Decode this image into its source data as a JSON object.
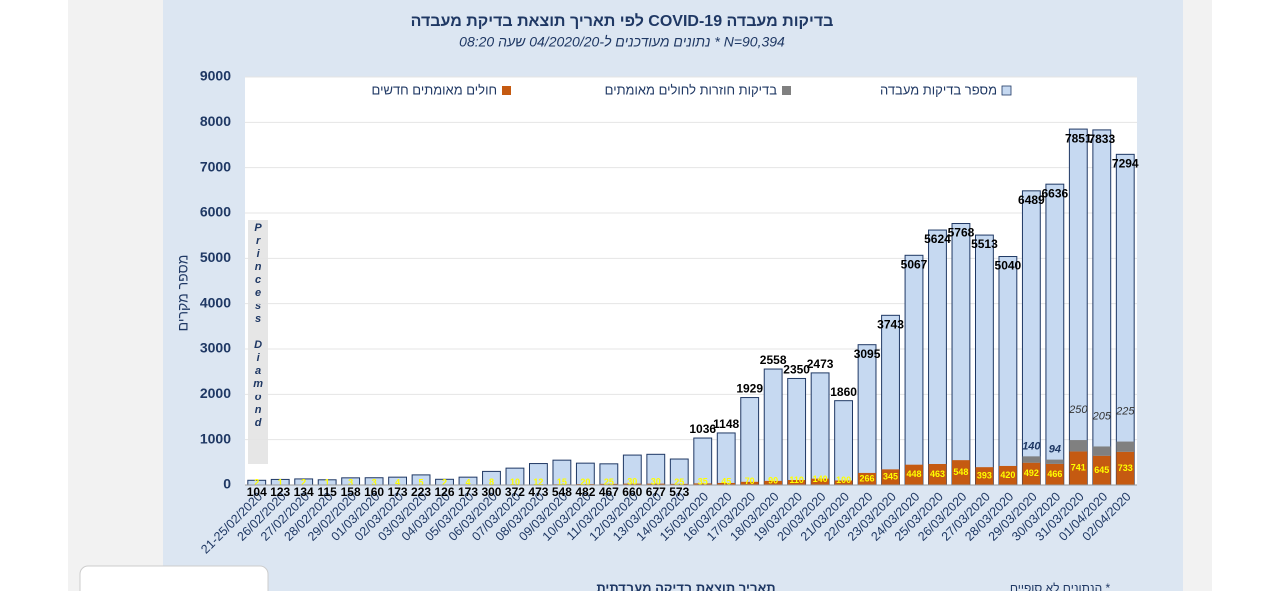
{
  "chart_data": {
    "type": "bar",
    "title": "בדיקות מעבדה COVID-19 לפי תאריך תוצאת בדיקת מעבדה",
    "subtitle": "N=90,394 *  נתונים מעודכנים ל-04/2020/20 שעה 08:20",
    "y_label": "מספר מקרים",
    "x_label": "תאריך תוצאת בדיקה מעבדתית",
    "annotation": "Princess Diamond",
    "footnote": "* הנתונים לא סופיים",
    "categories": [
      "21-25/02/2020",
      "26/02/2020",
      "27/02/2020",
      "28/02/2020",
      "29/02/2020",
      "01/03/2020",
      "02/03/2020",
      "03/03/2020",
      "04/03/2020",
      "05/03/2020",
      "06/03/2020",
      "07/03/2020",
      "08/03/2020",
      "09/03/2020",
      "10/03/2020",
      "11/03/2020",
      "12/03/2020",
      "13/03/2020",
      "14/03/2020",
      "15/03/2020",
      "16/03/2020",
      "17/03/2020",
      "18/03/2020",
      "19/03/2020",
      "20/03/2020",
      "21/03/2020",
      "22/03/2020",
      "23/03/2020",
      "24/03/2020",
      "25/03/2020",
      "26/03/2020",
      "27/03/2020",
      "28/03/2020",
      "29/03/2020",
      "30/03/2020",
      "31/03/2020",
      "01/04/2020",
      "02/04/2020"
    ],
    "series": [
      {
        "name": "חולים מאומתים חדשים",
        "color": "#c55a11",
        "values": [
          2,
          1,
          2,
          1,
          3,
          3,
          4,
          5,
          2,
          4,
          8,
          10,
          12,
          15,
          20,
          25,
          30,
          30,
          25,
          35,
          45,
          70,
          90,
          110,
          140,
          100,
          266,
          345,
          448,
          463,
          548,
          393,
          420,
          492,
          466,
          741,
          645,
          733
        ]
      },
      {
        "name": "בדיקות חוזרות לחולים מאומתים",
        "color": "#808080",
        "values": [
          null,
          null,
          null,
          null,
          null,
          null,
          null,
          null,
          null,
          null,
          null,
          null,
          null,
          null,
          null,
          null,
          null,
          null,
          null,
          null,
          null,
          null,
          null,
          null,
          null,
          null,
          null,
          null,
          null,
          null,
          null,
          null,
          null,
          140,
          94,
          250,
          205,
          225
        ]
      },
      {
        "name": "מספר בדיקות מעבדה",
        "color": "#c6d9f1",
        "values": [
          104,
          123,
          134,
          115,
          158,
          160,
          173,
          223,
          126,
          173,
          300,
          372,
          473,
          548,
          482,
          467,
          660,
          677,
          573,
          1036,
          1148,
          1929,
          2558,
          2350,
          2473,
          1860,
          3095,
          3743,
          5067,
          5624,
          5768,
          5513,
          5040,
          6489,
          6636,
          7851,
          7833,
          7294
        ]
      }
    ],
    "ylim": [
      0,
      9000
    ],
    "yticks": [
      0,
      1000,
      2000,
      3000,
      4000,
      5000,
      6000,
      7000,
      8000,
      9000
    ],
    "grid": true
  }
}
